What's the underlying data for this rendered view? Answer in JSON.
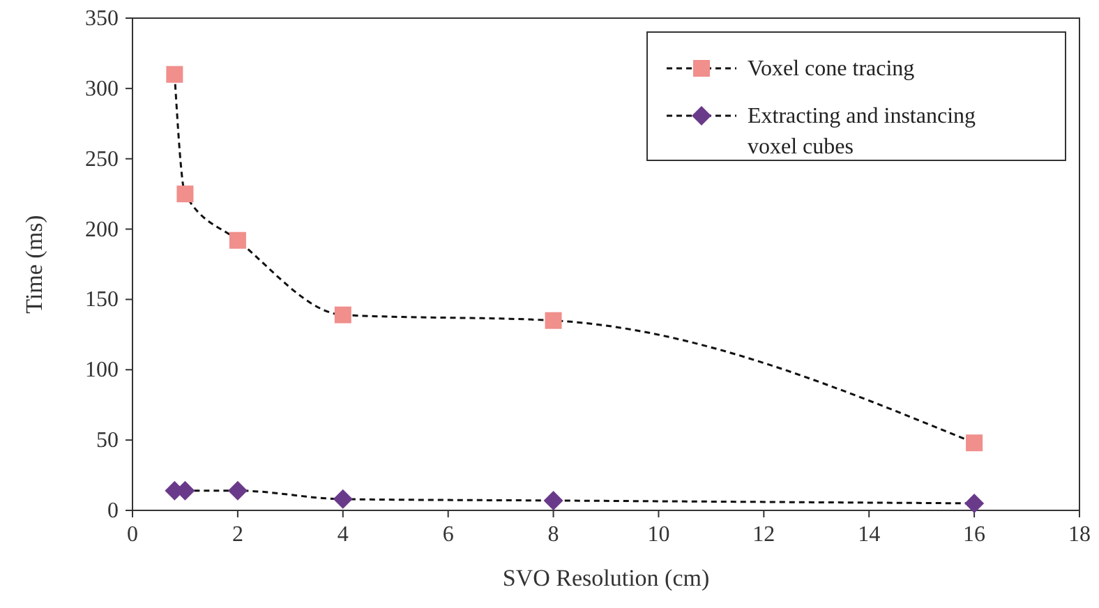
{
  "chart_data": {
    "type": "line",
    "xlabel": "SVO Resolution (cm)",
    "ylabel": "Time (ms)",
    "x": [
      0.8,
      1,
      2,
      4,
      8,
      16
    ],
    "series": [
      {
        "name": "Voxel cone tracing",
        "color": "#f08f8c",
        "marker": "square",
        "values": [
          310,
          225,
          192,
          139,
          135,
          48
        ]
      },
      {
        "name": "Extracting and instancing voxel cubes",
        "color": "#6a3a8a",
        "marker": "diamond",
        "values": [
          14,
          14,
          14,
          8,
          7,
          5
        ]
      }
    ],
    "xlim": [
      0,
      18
    ],
    "xticks": [
      0,
      2,
      4,
      6,
      8,
      10,
      12,
      14,
      16,
      18
    ],
    "ylim": [
      0,
      350
    ],
    "yticks": [
      0,
      50,
      100,
      150,
      200,
      250,
      300,
      350
    ],
    "grid": false,
    "legend": "top right",
    "line_style": "dashed"
  }
}
